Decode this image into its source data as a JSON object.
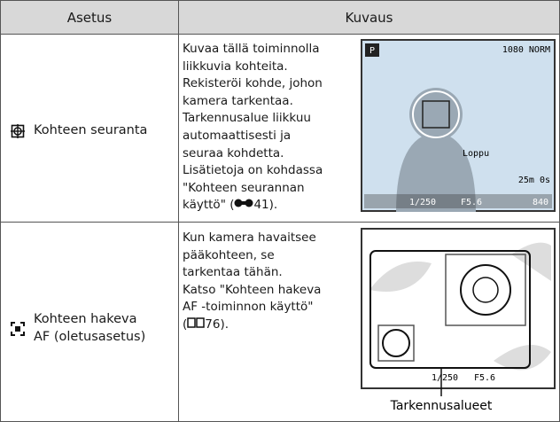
{
  "table": {
    "header": [
      "Asetus",
      "Kuvaus"
    ],
    "rows": [
      {
        "setting": [
          "Kohteen seuranta"
        ],
        "description": {
          "lines": [
            "Kuvaa tällä toiminnolla",
            "liikkuvia kohteita.",
            "Rekisteröi kohde, johon",
            "kamera tarkentaa.",
            "Tarkennusalue liikkuu",
            "automaattisesti ja",
            "seuraa kohdetta.",
            "Lisätietoja on kohdassa",
            "\"Kohteen seurannan"
          ],
          "ref_before": "käyttö\" (",
          "ref_after": "41)."
        },
        "screen": {
          "mode": "P",
          "top_right": "1080 NORM",
          "end": "Loppu",
          "time": "25m 0s",
          "shutter": "1/250",
          "aperture": "F5.6",
          "shots": "840"
        }
      },
      {
        "setting": [
          "Kohteen hakeva",
          "AF (oletusasetus)"
        ],
        "description": {
          "lines": [
            "Kun kamera havaitsee",
            "pääkohteen, se",
            "tarkentaa tähän.",
            "Katso \"Kohteen hakeva",
            "AF -toiminnon käyttö\""
          ],
          "ref_before": "(",
          "ref_after": "76)."
        },
        "screen": {
          "shutter": "1/250",
          "aperture": "F5.6",
          "caption": "Tarkennusalueet"
        }
      }
    ]
  }
}
